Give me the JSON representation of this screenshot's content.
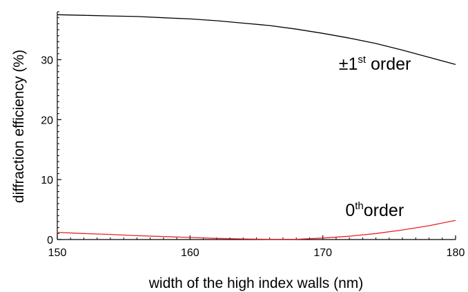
{
  "chart_data": {
    "type": "line",
    "title": "",
    "xlabel": "width of the high index walls (nm)",
    "ylabel": "diffraction efficiency (%)",
    "xlim": [
      150,
      180
    ],
    "ylim": [
      0,
      38
    ],
    "xticks": [
      150,
      160,
      170,
      180
    ],
    "yticks": [
      0,
      10,
      20,
      30
    ],
    "grid": false,
    "series": [
      {
        "color": "#000000",
        "x": [
          150,
          152,
          154,
          156,
          158,
          160,
          162,
          164,
          166,
          168,
          170,
          172,
          174,
          176,
          178,
          180
        ],
        "y": [
          37.5,
          37.4,
          37.3,
          37.2,
          37.0,
          36.8,
          36.5,
          36.1,
          35.7,
          35.1,
          34.4,
          33.6,
          32.7,
          31.6,
          30.4,
          29.2
        ]
      },
      {
        "color": "#e8202a",
        "x": [
          150,
          152,
          154,
          156,
          158,
          160,
          162,
          164,
          166,
          168,
          170,
          172,
          174,
          176,
          178,
          180
        ],
        "y": [
          1.2,
          1.0,
          0.85,
          0.65,
          0.5,
          0.35,
          0.2,
          0.1,
          0.03,
          0.05,
          0.25,
          0.55,
          1.0,
          1.6,
          2.3,
          3.2
        ]
      }
    ],
    "annotations": [
      {
        "base": "±1",
        "sup": "st",
        "text": " order",
        "x": 171.2,
        "y": 28.3
      },
      {
        "base": "0",
        "sup": "th",
        "text": "order",
        "x": 171.7,
        "y": 3.9
      }
    ]
  }
}
